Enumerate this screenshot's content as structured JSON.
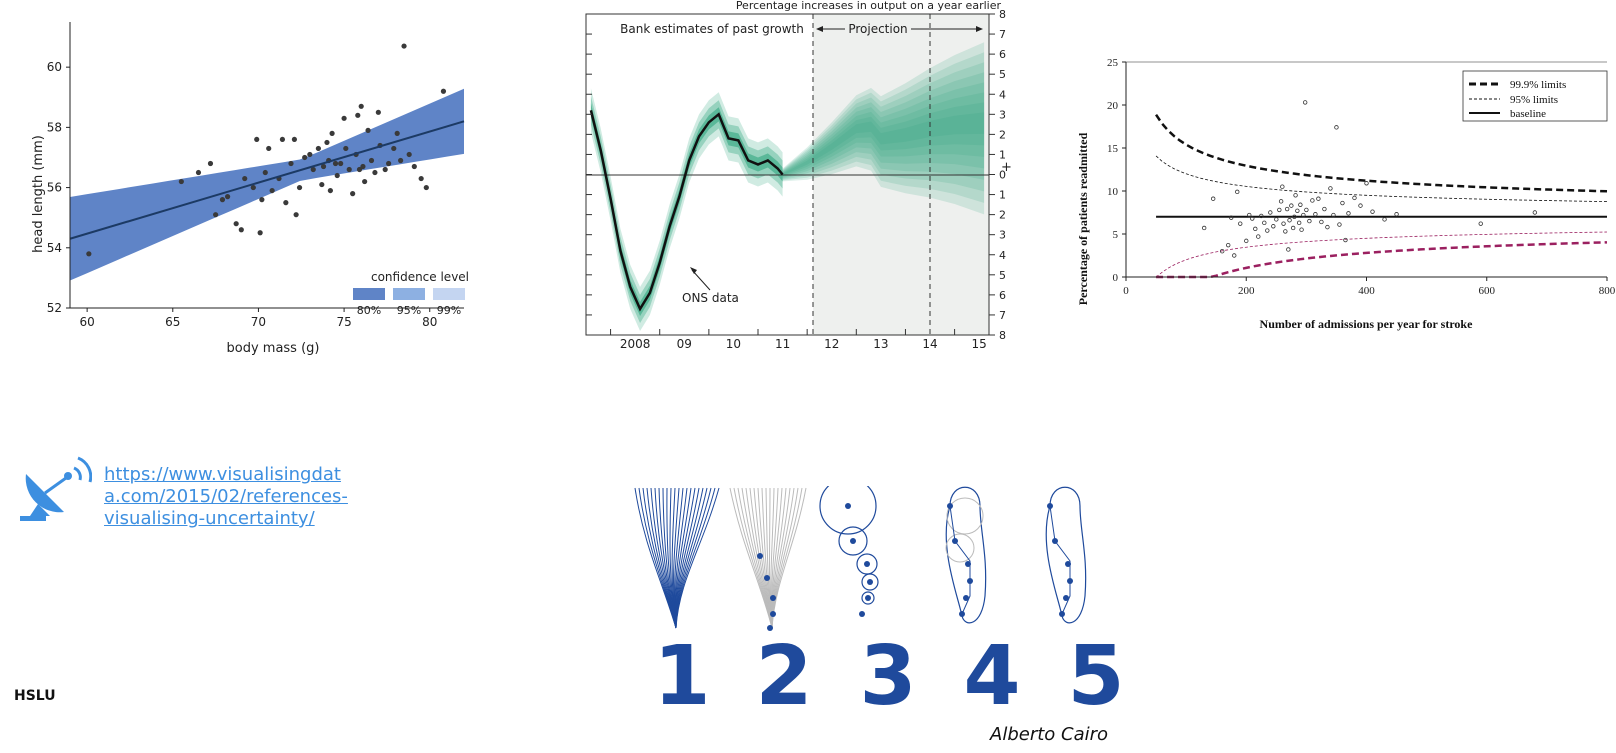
{
  "slide": {
    "link_text": "https://www.visualisingdata.com/2015/02/references-visualising-uncertainty/",
    "brand": "HSLU",
    "author": "Alberto Cairo",
    "link_icon": "satellite-dish-icon",
    "accent": "#3d8fe0"
  },
  "chart_data": [
    {
      "type": "scatter",
      "title": "",
      "xlabel": "body mass (g)",
      "ylabel": "head length (mm)",
      "xlim": [
        59,
        82
      ],
      "ylim": [
        52,
        61.5
      ],
      "x_ticks": [
        "60",
        "65",
        "70",
        "75",
        "80"
      ],
      "y_ticks": [
        "52",
        "54",
        "56",
        "58",
        "60"
      ],
      "points": [
        [
          60.1,
          53.8
        ],
        [
          65.5,
          56.2
        ],
        [
          66.5,
          56.5
        ],
        [
          67.2,
          56.8
        ],
        [
          67.5,
          55.1
        ],
        [
          67.9,
          55.6
        ],
        [
          68.2,
          55.7
        ],
        [
          68.7,
          54.8
        ],
        [
          69,
          54.6
        ],
        [
          69.2,
          56.3
        ],
        [
          69.7,
          56
        ],
        [
          69.9,
          57.6
        ],
        [
          70.1,
          54.5
        ],
        [
          70.2,
          55.6
        ],
        [
          70.4,
          56.5
        ],
        [
          70.6,
          57.3
        ],
        [
          70.8,
          55.9
        ],
        [
          71.2,
          56.3
        ],
        [
          71.4,
          57.6
        ],
        [
          71.6,
          55.5
        ],
        [
          71.9,
          56.8
        ],
        [
          72.1,
          57.6
        ],
        [
          72.2,
          55.1
        ],
        [
          72.4,
          56
        ],
        [
          72.7,
          57
        ],
        [
          73,
          57.1
        ],
        [
          73.2,
          56.6
        ],
        [
          73.5,
          57.3
        ],
        [
          73.7,
          56.1
        ],
        [
          73.8,
          56.7
        ],
        [
          74,
          57.5
        ],
        [
          74.1,
          56.9
        ],
        [
          74.2,
          55.9
        ],
        [
          74.3,
          57.8
        ],
        [
          74.5,
          56.8
        ],
        [
          74.6,
          56.4
        ],
        [
          74.8,
          56.8
        ],
        [
          75,
          58.3
        ],
        [
          75.1,
          57.3
        ],
        [
          75.3,
          56.6
        ],
        [
          75.5,
          55.8
        ],
        [
          75.7,
          57.1
        ],
        [
          75.8,
          58.4
        ],
        [
          75.9,
          56.6
        ],
        [
          76,
          58.7
        ],
        [
          76.1,
          56.7
        ],
        [
          76.2,
          56.2
        ],
        [
          76.4,
          57.9
        ],
        [
          76.6,
          56.9
        ],
        [
          76.8,
          56.5
        ],
        [
          77,
          58.5
        ],
        [
          77.1,
          57.4
        ],
        [
          77.4,
          56.6
        ],
        [
          77.6,
          56.8
        ],
        [
          77.9,
          57.3
        ],
        [
          78.1,
          57.8
        ],
        [
          78.3,
          56.9
        ],
        [
          78.5,
          60.7
        ],
        [
          78.8,
          57.1
        ],
        [
          79.1,
          56.7
        ],
        [
          79.5,
          56.3
        ],
        [
          79.8,
          56
        ],
        [
          80.8,
          59.2
        ]
      ],
      "fit_line": [
        [
          59,
          54.3
        ],
        [
          82,
          58.2
        ]
      ],
      "legend_title": "confidence level",
      "legend": [
        {
          "label": "80%",
          "color": "#5f84c7"
        },
        {
          "label": "95%",
          "color": "#8db0e2"
        },
        {
          "label": "99%",
          "color": "#c4d5f1"
        }
      ]
    },
    {
      "type": "area",
      "title": "Percentage increases in output on a year earlier",
      "x_ticks": [
        "2008",
        "09",
        "10",
        "11",
        "12",
        "13",
        "14",
        "15"
      ],
      "y_ticks_right": [
        "8",
        "7",
        "6",
        "5",
        "4",
        "3",
        "2",
        "1",
        "0",
        "1",
        "2",
        "3",
        "4",
        "5",
        "6",
        "7",
        "8"
      ],
      "ylim": [
        -8,
        8
      ],
      "xlim": [
        2007.5,
        2015.7
      ],
      "annotations": [
        "Bank estimates of past growth",
        "Projection",
        "ONS data"
      ],
      "plus_sign": "+",
      "series": [
        {
          "values": [
            [
              2007.6,
              3.2
            ],
            [
              2007.8,
              1.2
            ],
            [
              2008,
              -1.2
            ],
            [
              2008.2,
              -3.8
            ],
            [
              2008.4,
              -5.6
            ],
            [
              2008.6,
              -6.7
            ],
            [
              2008.8,
              -5.9
            ],
            [
              2009,
              -4.4
            ],
            [
              2009.2,
              -2.6
            ],
            [
              2009.4,
              -1.1
            ],
            [
              2009.6,
              0.7
            ],
            [
              2009.8,
              1.9
            ],
            [
              2010,
              2.6
            ],
            [
              2010.2,
              3
            ],
            [
              2010.4,
              1.8
            ],
            [
              2010.6,
              1.7
            ],
            [
              2010.8,
              0.7
            ],
            [
              2011,
              0.5
            ],
            [
              2011.2,
              0.7
            ],
            [
              2011.4,
              0.3
            ],
            [
              2011.5,
              0
            ]
          ]
        }
      ],
      "fan": [
        [
          2011.5,
          0
        ],
        [
          2012,
          0.6
        ],
        [
          2012.5,
          1.4
        ],
        [
          2013,
          2.3
        ],
        [
          2013.3,
          2.4
        ],
        [
          2013.5,
          1.8
        ],
        [
          2014,
          2
        ],
        [
          2014.5,
          2.3
        ],
        [
          2015,
          2.5
        ],
        [
          2015.6,
          2.6
        ]
      ],
      "colors": {
        "fan": "#2aa37a",
        "line": "#111111"
      }
    },
    {
      "type": "scatter",
      "title": "",
      "xlabel": "Number of admissions per year for stroke",
      "ylabel": "Percentage of patients readmitted",
      "xlim": [
        0,
        800
      ],
      "ylim": [
        0,
        25
      ],
      "x_ticks": [
        "0",
        "200",
        "400",
        "600",
        "800"
      ],
      "y_ticks": [
        "0",
        "5",
        "10",
        "15",
        "20",
        "25"
      ],
      "baseline": 7,
      "legend": [
        "99.9% limits",
        "95% limits",
        "baseline"
      ],
      "points": [
        [
          130,
          5.7
        ],
        [
          145,
          9.1
        ],
        [
          160,
          3
        ],
        [
          170,
          3.7
        ],
        [
          175,
          6.9
        ],
        [
          180,
          2.5
        ],
        [
          185,
          9.9
        ],
        [
          190,
          6.2
        ],
        [
          200,
          4.2
        ],
        [
          205,
          7.2
        ],
        [
          210,
          6.8
        ],
        [
          215,
          5.6
        ],
        [
          220,
          4.7
        ],
        [
          225,
          7.1
        ],
        [
          230,
          6.3
        ],
        [
          235,
          5.4
        ],
        [
          240,
          7.5
        ],
        [
          245,
          5.9
        ],
        [
          250,
          6.7
        ],
        [
          255,
          7.8
        ],
        [
          258,
          8.8
        ],
        [
          260,
          10.5
        ],
        [
          262,
          6.2
        ],
        [
          265,
          5.3
        ],
        [
          268,
          7.9
        ],
        [
          270,
          3.2
        ],
        [
          272,
          6.6
        ],
        [
          275,
          8.3
        ],
        [
          278,
          5.7
        ],
        [
          280,
          7
        ],
        [
          282,
          9.5
        ],
        [
          285,
          7.7
        ],
        [
          288,
          6.3
        ],
        [
          290,
          8.4
        ],
        [
          292,
          5.5
        ],
        [
          295,
          7.2
        ],
        [
          298,
          20.3
        ],
        [
          300,
          7.8
        ],
        [
          305,
          6.5
        ],
        [
          310,
          8.9
        ],
        [
          315,
          7.3
        ],
        [
          320,
          9.1
        ],
        [
          325,
          6.4
        ],
        [
          330,
          7.9
        ],
        [
          335,
          5.8
        ],
        [
          340,
          10.3
        ],
        [
          345,
          7.2
        ],
        [
          350,
          17.4
        ],
        [
          355,
          6.1
        ],
        [
          360,
          8.6
        ],
        [
          365,
          4.3
        ],
        [
          370,
          7.4
        ],
        [
          380,
          9.2
        ],
        [
          390,
          8.3
        ],
        [
          400,
          10.9
        ],
        [
          410,
          7.6
        ],
        [
          430,
          6.7
        ],
        [
          450,
          7.3
        ],
        [
          590,
          6.2
        ],
        [
          680,
          7.5
        ]
      ]
    }
  ],
  "cairo_numbers": [
    "1",
    "2",
    "3",
    "4",
    "5"
  ]
}
